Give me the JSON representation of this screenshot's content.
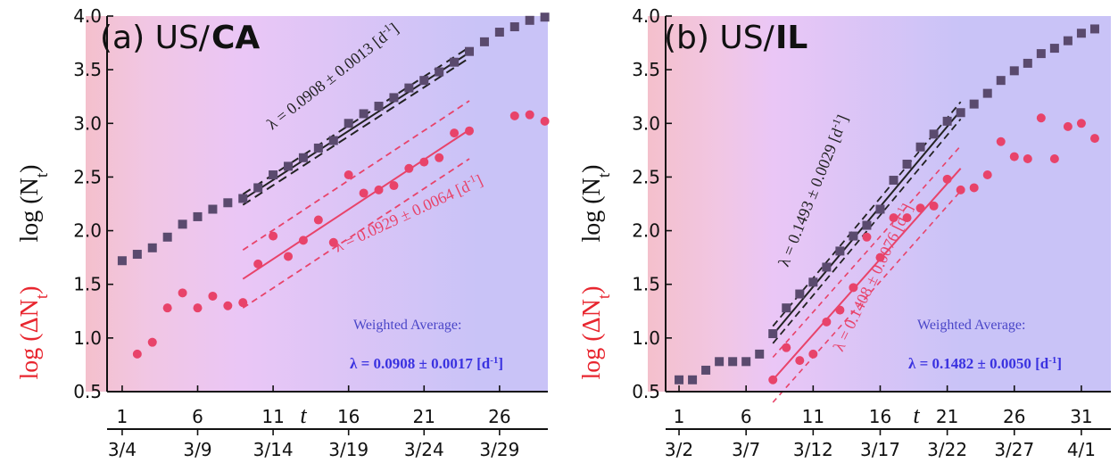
{
  "chart_data": [
    {
      "type": "scatter",
      "panel_label": "(a) US/",
      "region": "CA",
      "ylabel_black": "log (N",
      "ylabel_black_sub": "t",
      "ylabel_black_close": ")",
      "ylabel_red": "log (ΔN",
      "ylabel_red_sub": "t",
      "ylabel_red_close": ")",
      "xlabel": "t",
      "ylim": [
        0.5,
        4.0
      ],
      "xlim": [
        0,
        29.2
      ],
      "yticks": [
        "0.5",
        "1.0",
        "1.5",
        "2.0",
        "2.5",
        "3.0",
        "3.5",
        "4.0"
      ],
      "xticks_day": [
        {
          "x": 1,
          "label": "1"
        },
        {
          "x": 6,
          "label": "6"
        },
        {
          "x": 11,
          "label": "11"
        },
        {
          "x": 16,
          "label": "16"
        },
        {
          "x": 21,
          "label": "21"
        },
        {
          "x": 26,
          "label": "26"
        }
      ],
      "xticks_date": [
        {
          "x": 1,
          "label": "3/4"
        },
        {
          "x": 6,
          "label": "3/9"
        },
        {
          "x": 11,
          "label": "3/14"
        },
        {
          "x": 16,
          "label": "3/19"
        },
        {
          "x": 21,
          "label": "3/24"
        },
        {
          "x": 26,
          "label": "3/29"
        }
      ],
      "background": {
        "bands": [
          0,
          2.5,
          9,
          24.5,
          29.2
        ],
        "colors": [
          "#f4c0cc",
          "#f1c6e3",
          "#eac6f6",
          "#c9c3f7"
        ]
      },
      "series": [
        {
          "name": "N",
          "color": "#5a4a6e",
          "marker": "square",
          "x": [
            1,
            2,
            3,
            4,
            5,
            6,
            7,
            8,
            9,
            10,
            11,
            12,
            13,
            14,
            15,
            16,
            17,
            18,
            19,
            20,
            21,
            22,
            23,
            24,
            25,
            26,
            27,
            28,
            29
          ],
          "y": [
            1.72,
            1.78,
            1.84,
            1.94,
            2.06,
            2.13,
            2.2,
            2.26,
            2.3,
            2.4,
            2.52,
            2.6,
            2.68,
            2.77,
            2.84,
            3.0,
            3.09,
            3.16,
            3.24,
            3.33,
            3.4,
            3.48,
            3.57,
            3.67,
            3.76,
            3.85,
            3.9,
            3.96,
            3.99
          ]
        },
        {
          "name": "ΔN",
          "color": "#e8436a",
          "marker": "circle",
          "x": [
            2,
            3,
            4,
            5,
            6,
            7,
            8,
            9,
            10,
            11,
            12,
            13,
            14,
            15,
            16,
            17,
            18,
            19,
            20,
            21,
            22,
            23,
            24,
            27,
            28,
            29
          ],
          "y": [
            0.85,
            0.96,
            1.28,
            1.42,
            1.28,
            1.39,
            1.3,
            1.33,
            1.69,
            1.95,
            1.76,
            1.91,
            2.1,
            1.89,
            2.52,
            2.35,
            2.38,
            2.42,
            2.58,
            2.64,
            2.68,
            2.91,
            2.93,
            3.07,
            3.08,
            3.02
          ]
        }
      ],
      "fits": [
        {
          "series": "N",
          "color": "#222222",
          "x": [
            9,
            24
          ],
          "y": [
            2.29,
            3.66
          ],
          "band_half_width": 0.05,
          "band_dash": "10,6",
          "band_width": 2
        },
        {
          "series": "ΔN",
          "color": "#e8436a",
          "x": [
            9,
            24
          ],
          "y": [
            1.55,
            2.94
          ],
          "band_half_width": 0.27,
          "band_dash": "7,5",
          "band_width": 1.8
        }
      ],
      "annotations": {
        "lambda_black": "λ = 0.0908 ± 0.0013 [d",
        "lambda_red": "λ = 0.0929 ± 0.0064 [d",
        "unit_sup": "-1",
        "unit_close": "]",
        "weighted_avg_label": "Weighted Average:",
        "weighted_avg_value": "λ = 0.0908 ± 0.0017 [d"
      }
    },
    {
      "type": "scatter",
      "panel_label": "(b) US/",
      "region": "IL",
      "ylabel_black": "log (N",
      "ylabel_black_sub": "t",
      "ylabel_black_close": ")",
      "ylabel_red": "log (ΔN",
      "ylabel_red_sub": "t",
      "ylabel_red_close": ")",
      "xlabel": "t",
      "ylim": [
        0.5,
        4.0
      ],
      "xlim": [
        0,
        33.2
      ],
      "yticks": [
        "0.5",
        "1.0",
        "1.5",
        "2.0",
        "2.5",
        "3.0",
        "3.5",
        "4.0"
      ],
      "xticks_day": [
        {
          "x": 1,
          "label": "1"
        },
        {
          "x": 6,
          "label": "6"
        },
        {
          "x": 11,
          "label": "11"
        },
        {
          "x": 16,
          "label": "16"
        },
        {
          "x": 21,
          "label": "21"
        },
        {
          "x": 26,
          "label": "26"
        },
        {
          "x": 31,
          "label": "31"
        }
      ],
      "xticks_date": [
        {
          "x": 1,
          "label": "3/2"
        },
        {
          "x": 6,
          "label": "3/7"
        },
        {
          "x": 11,
          "label": "3/12"
        },
        {
          "x": 16,
          "label": "3/17"
        },
        {
          "x": 21,
          "label": "3/22"
        },
        {
          "x": 26,
          "label": "3/27"
        },
        {
          "x": 31,
          "label": "4/1"
        }
      ],
      "background": {
        "bands": [
          0,
          4,
          8,
          22,
          33.2
        ],
        "colors": [
          "#f4c0cc",
          "#f1c6e3",
          "#eac6f6",
          "#c9c3f7"
        ]
      },
      "series": [
        {
          "name": "N",
          "color": "#5a4a6e",
          "marker": "square",
          "x": [
            1,
            2,
            3,
            4,
            5,
            6,
            7,
            8,
            9,
            10,
            11,
            12,
            13,
            14,
            15,
            16,
            17,
            18,
            19,
            20,
            21,
            22,
            23,
            24,
            25,
            26,
            27,
            28,
            29,
            30,
            31,
            32
          ],
          "y": [
            0.61,
            0.61,
            0.7,
            0.78,
            0.78,
            0.78,
            0.85,
            1.04,
            1.28,
            1.41,
            1.52,
            1.66,
            1.81,
            1.95,
            2.05,
            2.2,
            2.47,
            2.62,
            2.78,
            2.9,
            3.02,
            3.1,
            3.18,
            3.28,
            3.4,
            3.49,
            3.56,
            3.65,
            3.7,
            3.77,
            3.84,
            3.88
          ]
        },
        {
          "name": "ΔN",
          "color": "#e8436a",
          "marker": "circle",
          "x": [
            8,
            9,
            10,
            11,
            12,
            13,
            14,
            15,
            16,
            17,
            18,
            19,
            20,
            21,
            22,
            23,
            24,
            25,
            26,
            27,
            28,
            29,
            30,
            31,
            32
          ],
          "y": [
            0.61,
            0.91,
            0.79,
            0.85,
            1.15,
            1.26,
            1.47,
            1.94,
            1.75,
            2.12,
            2.12,
            2.21,
            2.23,
            2.48,
            2.38,
            2.4,
            2.52,
            2.83,
            2.69,
            2.67,
            3.05,
            2.67,
            2.97,
            3.0,
            2.86
          ]
        }
      ],
      "fits": [
        {
          "series": "N",
          "color": "#222222",
          "x": [
            8,
            22
          ],
          "y": [
            1.03,
            3.12
          ],
          "band_half_width": 0.08,
          "band_dash": "8,5",
          "band_width": 1.8
        },
        {
          "series": "ΔN",
          "color": "#e8436a",
          "x": [
            8,
            22
          ],
          "y": [
            0.61,
            2.58
          ],
          "band_half_width": 0.21,
          "band_dash": "6,5",
          "band_width": 1.6
        }
      ],
      "annotations": {
        "lambda_black": "λ = 0.1493 ± 0.0029 [d",
        "lambda_red": "λ = 0.1408 ± 0.0076 [d",
        "unit_sup": "-1",
        "unit_close": "]",
        "weighted_avg_label": "Weighted Average:",
        "weighted_avg_value": "λ = 0.1482 ± 0.0050 [d"
      }
    }
  ]
}
